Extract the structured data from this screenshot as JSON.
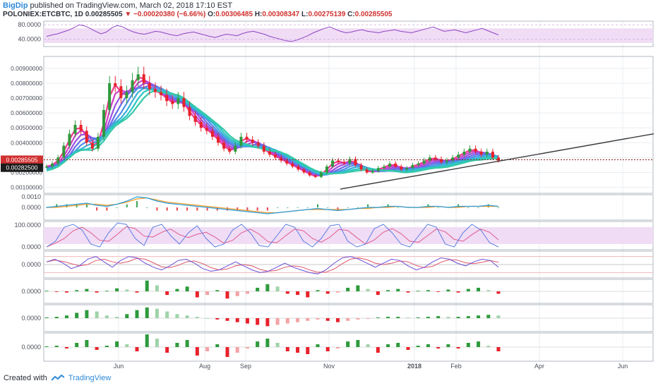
{
  "header": {
    "author": "BigDip",
    "published_text": "published on TradingView.com, March 02, 2018 17:10 EST",
    "symbol_line": "POLONIEX:ETCBTC, 1D",
    "last": "0.00285505",
    "change": "−0.00020380 (−6.66%)",
    "open_label": "O:",
    "open": "0.00306485",
    "high_label": "H:",
    "high": "0.00308347",
    "low_label": "L:",
    "low": "0.00275139",
    "close_label": "C:",
    "close": "0.00285505"
  },
  "footer": {
    "created_with": "Created with",
    "brand": "TradingView"
  },
  "colors": {
    "up": "#2e9a3c",
    "down": "#e8222b",
    "rsi": "#8e44c4",
    "band": "#f0dcf5",
    "macd": "#2a9bd8",
    "signal": "#f39c2b",
    "trendline": "#3a3a3a",
    "grid": "#e8edf2",
    "price_label_red": "#d0302f",
    "price_label_dark": "#1c1c1c"
  },
  "chart_data": [
    {
      "type": "line",
      "pane": "rsi",
      "ylim": [
        20,
        90
      ],
      "y_ticks": [
        "80.0000",
        "40.0000"
      ],
      "band": [
        30,
        70
      ],
      "series": [
        {
          "values": [
            48,
            52,
            55,
            60,
            65,
            72,
            80,
            77,
            70,
            62,
            55,
            60,
            72,
            78,
            74,
            66,
            60,
            56,
            54,
            58,
            62,
            60,
            56,
            52,
            50,
            55,
            58,
            60,
            56,
            52,
            48,
            45,
            50,
            54,
            52,
            50,
            56,
            60,
            62,
            58,
            54,
            48,
            44,
            40,
            36,
            34,
            38,
            44,
            50,
            58,
            64,
            70,
            74,
            68,
            62,
            58,
            60,
            64,
            66,
            62,
            60,
            58,
            62,
            64,
            66,
            62,
            60,
            58,
            62,
            66,
            70,
            74,
            68,
            62,
            64,
            66,
            62,
            58,
            62,
            66,
            70,
            64,
            58,
            52
          ]
        }
      ]
    },
    {
      "type": "line",
      "pane": "price",
      "x_ticks": [
        "Jun",
        "Aug",
        "Sep",
        "Nov",
        "2018",
        "Feb",
        "Apr",
        "Jun"
      ],
      "y_ticks": [
        "0.00900000",
        "0.00800000",
        "0.00700000",
        "0.00600000",
        "0.00500000",
        "0.00400000",
        "0.00300000",
        "0.00200000",
        "0.00100000"
      ],
      "ylim": [
        0.0006,
        0.0098
      ],
      "price_labels": [
        "0.00285505",
        "0.00282500"
      ],
      "series": [
        {
          "values": [
            0.0024,
            0.0026,
            0.003,
            0.0038,
            0.0046,
            0.0052,
            0.0048,
            0.004,
            0.0036,
            0.0044,
            0.0062,
            0.008,
            0.0078,
            0.007,
            0.0074,
            0.0082,
            0.0086,
            0.008,
            0.0076,
            0.0074,
            0.0072,
            0.0068,
            0.0066,
            0.007,
            0.0064,
            0.0058,
            0.0054,
            0.005,
            0.0048,
            0.0044,
            0.004,
            0.0036,
            0.0034,
            0.0038,
            0.0044,
            0.0042,
            0.004,
            0.0038,
            0.0034,
            0.0032,
            0.003,
            0.0028,
            0.0026,
            0.0024,
            0.0022,
            0.002,
            0.0018,
            0.0017,
            0.002,
            0.0024,
            0.0028,
            0.0027,
            0.0026,
            0.0029,
            0.0025,
            0.0022,
            0.002,
            0.0021,
            0.0023,
            0.0024,
            0.0026,
            0.0024,
            0.0022,
            0.0023,
            0.0025,
            0.0026,
            0.0028,
            0.003,
            0.0029,
            0.0027,
            0.0028,
            0.003,
            0.0032,
            0.0034,
            0.0036,
            0.0034,
            0.0032,
            0.0034,
            0.003,
            0.0028
          ]
        }
      ]
    },
    {
      "type": "line",
      "pane": "macd",
      "y_ticks": [
        "0.0010",
        "0.0000"
      ],
      "ylim": [
        -0.0012,
        0.0012
      ],
      "series": [
        {
          "values": [
            0.0,
            0.0001,
            0.0002,
            0.0003,
            0.0004,
            0.0002,
            0.0001,
            0.0003,
            0.0006,
            0.001,
            0.0009,
            0.0006,
            0.0004,
            0.0003,
            0.0002,
            0.0001,
            0.0,
            -0.0001,
            -0.0002,
            -0.0003,
            -0.0004,
            -0.0005,
            -0.0006,
            -0.0005,
            -0.0004,
            -0.0003,
            -0.0002,
            -0.0001,
            -0.0002,
            -0.0003,
            -0.0002,
            -0.0001,
            0.0,
            0.0,
            0.0001,
            0.0001,
            0.0,
            0.0,
            0.0001,
            0.0001,
            0.0,
            0.0001,
            0.0001,
            0.0001,
            0.0002,
            0.0001
          ]
        },
        {
          "values": [
            0.0,
            0.0,
            0.0001,
            0.0002,
            0.0003,
            0.0003,
            0.0002,
            0.0003,
            0.0005,
            0.0008,
            0.0009,
            0.0007,
            0.0005,
            0.0004,
            0.0003,
            0.0002,
            0.0001,
            0.0,
            -0.0001,
            -0.0002,
            -0.0003,
            -0.0004,
            -0.0005,
            -0.0005,
            -0.0004,
            -0.0003,
            -0.0002,
            -0.0002,
            -0.0002,
            -0.0002,
            -0.0002,
            -0.0001,
            -0.0001,
            0.0,
            0.0,
            0.0001,
            0.0,
            0.0,
            0.0,
            0.0001,
            0.0,
            0.0,
            0.0001,
            0.0001,
            0.0001,
            0.0001
          ]
        }
      ]
    },
    {
      "type": "line",
      "pane": "stoch",
      "y_ticks": [
        "100.0000",
        "0.0000"
      ],
      "ylim": [
        0,
        100
      ],
      "band": [
        20,
        80
      ],
      "series": [
        {
          "values": [
            10,
            30,
            80,
            90,
            70,
            20,
            10,
            60,
            95,
            90,
            40,
            15,
            80,
            90,
            50,
            20,
            60,
            85,
            40,
            10,
            20,
            70,
            90,
            60,
            15,
            10,
            50,
            90,
            80,
            30,
            10,
            40,
            85,
            90,
            30,
            10,
            20,
            75,
            90,
            60,
            20,
            10,
            50,
            90,
            80,
            20,
            10,
            60,
            90,
            70,
            25,
            10
          ]
        }
      ]
    },
    {
      "type": "line",
      "pane": "cci",
      "y_ticks": [
        "0.0000"
      ],
      "ylim": [
        -100,
        100
      ],
      "series": [
        {
          "values": [
            20,
            40,
            10,
            -30,
            -10,
            40,
            60,
            20,
            -20,
            30,
            60,
            50,
            10,
            -20,
            -40,
            -10,
            30,
            40,
            10,
            -30,
            -50,
            -40,
            -10,
            20,
            -10,
            -40,
            -60,
            -50,
            -20,
            10,
            -20,
            -40,
            -60,
            -70,
            -40,
            10,
            50,
            60,
            40,
            10,
            -20,
            10,
            40,
            30,
            -10,
            -40,
            -20,
            20,
            50,
            40,
            10,
            -10,
            20,
            40,
            30,
            -20
          ]
        }
      ]
    },
    {
      "type": "bar",
      "pane": "histogram-1",
      "y_ticks": [
        "0.0000"
      ],
      "ylim": [
        -1,
        1
      ],
      "values": [
        0.05,
        -0.05,
        -0.1,
        0.1,
        0.2,
        -0.1,
        0.05,
        0.25,
        0.15,
        -0.1,
        0.9,
        0.5,
        -0.3,
        0.2,
        0.4,
        -0.5,
        -0.3,
        0.1,
        -0.6,
        -0.4,
        -0.2,
        0.3,
        0.6,
        0.4,
        -0.2,
        -0.3,
        -0.5,
        0.1,
        -0.2,
        -0.1,
        0.3,
        0.5,
        0.2,
        -0.3,
        0.1,
        0.2,
        -0.1,
        0.05,
        0.1,
        -0.05,
        0.15,
        -0.1,
        0.2,
        0.3,
        0.1,
        -0.2
      ]
    },
    {
      "type": "bar",
      "pane": "histogram-2",
      "y_ticks": [
        "0.0000"
      ],
      "ylim": [
        -1,
        1
      ],
      "values": [
        0.05,
        0.1,
        0.2,
        0.4,
        0.6,
        0.5,
        0.2,
        0.1,
        0.3,
        0.6,
        0.8,
        0.7,
        0.5,
        0.3,
        0.2,
        0.1,
        0.0,
        -0.1,
        -0.2,
        -0.3,
        -0.4,
        -0.5,
        -0.6,
        -0.5,
        -0.4,
        -0.3,
        -0.2,
        -0.1,
        -0.2,
        -0.3,
        -0.2,
        -0.1,
        -0.05,
        0.05,
        0.1,
        0.1,
        0.05,
        0.05,
        0.1,
        0.15,
        0.1,
        0.1,
        0.15,
        0.2,
        0.25,
        0.2
      ]
    },
    {
      "type": "bar",
      "pane": "histogram-3",
      "y_ticks": [
        "0.0000"
      ],
      "ylim": [
        -1,
        1
      ],
      "values": [
        0.05,
        0.1,
        -0.1,
        0.3,
        0.5,
        -0.2,
        0.1,
        0.4,
        0.2,
        -0.3,
        0.9,
        0.6,
        -0.4,
        0.3,
        0.5,
        -0.6,
        -0.3,
        0.2,
        -0.7,
        -0.4,
        -0.1,
        0.4,
        0.6,
        0.3,
        -0.3,
        -0.4,
        -0.5,
        0.2,
        -0.3,
        -0.1,
        0.4,
        0.5,
        0.2,
        -0.4,
        0.2,
        0.3,
        -0.2,
        0.1,
        0.2,
        -0.1,
        0.2,
        -0.1,
        0.3,
        0.4,
        0.1,
        -0.3
      ]
    }
  ]
}
